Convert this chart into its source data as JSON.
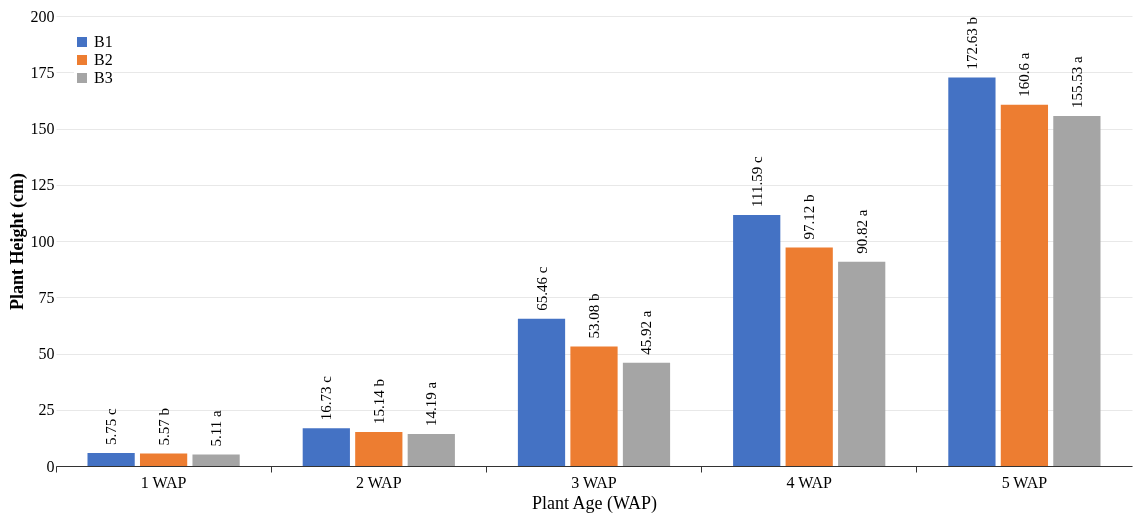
{
  "chart_data": {
    "type": "bar",
    "xlabel": "Plant Age (WAP)",
    "ylabel": "Plant Height (cm)",
    "categories": [
      "1 WAP",
      "2 WAP",
      "3 WAP",
      "4 WAP",
      "5 WAP"
    ],
    "series": [
      {
        "name": "B1",
        "color": "#4472c4",
        "values": [
          5.75,
          16.73,
          65.46,
          111.59,
          172.63
        ],
        "value_labels": [
          "5.75 c",
          "16.73 c",
          "65.46 c",
          "111.59 c",
          "172.63 b"
        ]
      },
      {
        "name": "B2",
        "color": "#ed7d31",
        "values": [
          5.57,
          15.14,
          53.08,
          97.12,
          160.6
        ],
        "value_labels": [
          "5.57 b",
          "15.14 b",
          "53.08 b",
          "97.12 b",
          "160.6 a"
        ]
      },
      {
        "name": "B3",
        "color": "#a5a5a5",
        "values": [
          5.11,
          14.19,
          45.92,
          90.82,
          155.53
        ],
        "value_labels": [
          "5.11 a",
          "14.19 a",
          "45.92 a",
          "90.82 a",
          "155.53 a"
        ]
      }
    ],
    "ylim": [
      0,
      200
    ],
    "yticks": [
      0,
      25,
      50,
      75,
      100,
      125,
      150,
      175,
      200
    ],
    "grid": "y",
    "legend": "top left"
  }
}
